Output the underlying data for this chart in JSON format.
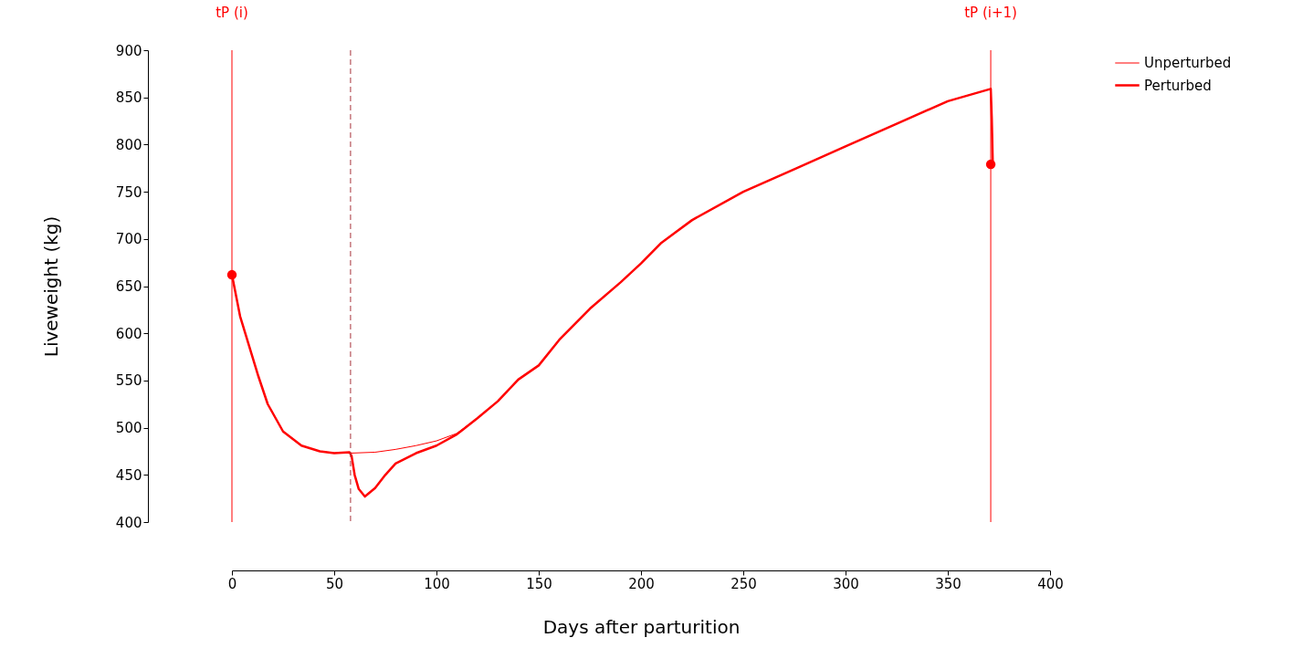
{
  "chart_data": {
    "type": "line",
    "xlabel": "Days after parturition",
    "ylabel": "Liveweight (kg)",
    "xlim": [
      0,
      400
    ],
    "ylim": [
      400,
      900
    ],
    "xticks": [
      0,
      50,
      100,
      150,
      200,
      250,
      300,
      350,
      400
    ],
    "yticks": [
      400,
      450,
      500,
      550,
      600,
      650,
      700,
      750,
      800,
      850,
      900
    ],
    "grid": false,
    "legend": "top right",
    "marker": "none",
    "line_style": "solid",
    "series": [
      {
        "name": "Unperturbed",
        "color": "#ff0000",
        "x": [
          0,
          4,
          13,
          17.5,
          25,
          34,
          43,
          50,
          57.5,
          70,
          80,
          90,
          100,
          110,
          120,
          130,
          140,
          150,
          160,
          175,
          190,
          200,
          210,
          225,
          250,
          275,
          300,
          325,
          350,
          371,
          371.5,
          372
        ],
        "values": [
          662,
          618,
          554,
          525,
          496,
          481,
          475,
          473,
          473,
          474,
          477,
          481,
          486,
          494,
          510,
          528,
          551,
          566,
          593,
          626,
          654,
          674,
          696,
          720,
          750,
          774,
          798,
          822,
          846,
          859,
          828,
          779
        ]
      },
      {
        "name": "Perturbed",
        "color": "#ff0000",
        "x": [
          0,
          4,
          13,
          17.5,
          25,
          34,
          43,
          50,
          57.5,
          58.5,
          60,
          62,
          65,
          70,
          75,
          80,
          90,
          100,
          110,
          120,
          130,
          140,
          150,
          160,
          175,
          190,
          200,
          210,
          225,
          250,
          275,
          300,
          325,
          350,
          371,
          371.5,
          372
        ],
        "values": [
          662,
          618,
          554,
          525,
          496,
          481,
          475,
          473,
          474,
          470,
          450,
          435,
          427,
          436,
          450,
          462,
          473,
          481,
          493,
          510,
          528,
          551,
          566,
          593,
          626,
          654,
          674,
          696,
          720,
          750,
          774,
          798,
          822,
          846,
          859,
          828,
          779
        ]
      },
      {
        "type": "scatter",
        "marker": "circle",
        "color": "#ff0000",
        "x": [
          0,
          371
        ],
        "values": [
          662,
          779
        ]
      }
    ],
    "ref_lines": [
      {
        "axis": "x",
        "value": 0,
        "label": "tP (i)",
        "color": "#ff0000"
      },
      {
        "axis": "x",
        "value": 58,
        "color": "#a8323a",
        "line_style": "dashed"
      },
      {
        "axis": "x",
        "value": 371,
        "label": "tP (i+1)",
        "color": "#ff0000"
      }
    ]
  }
}
